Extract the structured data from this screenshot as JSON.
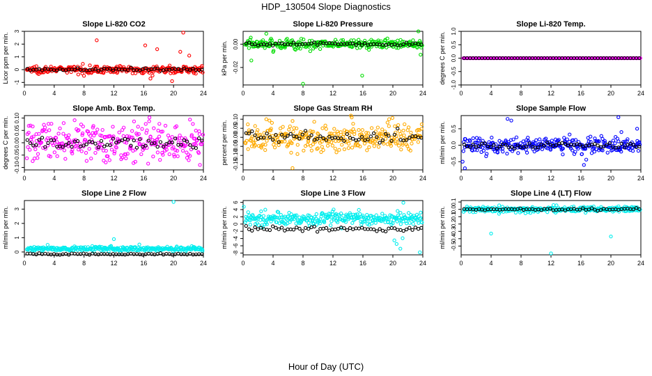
{
  "page": {
    "title": "HDP_130504  Slope Diagnostics",
    "xlabel": "Hour of Day (UTC)"
  },
  "colors": {
    "reference": "#000000",
    "axis": "#000000"
  },
  "chart_data": [
    {
      "type": "scatter",
      "title": "Slope Li-820 CO2",
      "ylabel": "Licor ppm per min.",
      "color": "#ff0000",
      "xlim": [
        0,
        24
      ],
      "xticks": [
        0,
        4,
        8,
        12,
        16,
        20,
        24
      ],
      "ylim": [
        -1.2,
        3.0
      ],
      "yticks": [
        -1,
        0,
        1,
        2,
        3
      ],
      "yticklabels": [
        "-1",
        "0",
        "1",
        "2",
        "3"
      ],
      "band": {
        "center": 0.0,
        "spread": 0.25
      },
      "ref_offset": 0.0,
      "outliers": [
        [
          9.7,
          2.3
        ],
        [
          16.2,
          1.9
        ],
        [
          17.8,
          1.6
        ],
        [
          21.3,
          2.9
        ],
        [
          19.8,
          -0.9
        ],
        [
          20.9,
          1.4
        ],
        [
          16.9,
          -0.7
        ],
        [
          22.1,
          1.1
        ]
      ]
    },
    {
      "type": "scatter",
      "title": "Slope Li-820 Pressure",
      "ylabel": "kPa per min.",
      "color": "#00dd00",
      "xlim": [
        0,
        24
      ],
      "xticks": [
        0,
        4,
        8,
        12,
        16,
        20,
        24
      ],
      "ylim": [
        -0.035,
        0.011
      ],
      "yticks": [
        -0.02,
        0.0
      ],
      "yticklabels": [
        "-0.02",
        "0.00"
      ],
      "band": {
        "center": 0.0,
        "spread": 0.004
      },
      "ref_offset": 0.0,
      "outliers": [
        [
          8.0,
          -0.034
        ],
        [
          15.9,
          -0.027
        ],
        [
          23.7,
          -0.009
        ],
        [
          1.1,
          -0.014
        ],
        [
          3.1,
          0.009
        ],
        [
          23.4,
          0.011
        ]
      ]
    },
    {
      "type": "scatter",
      "title": "Slope Li-820 Temp.",
      "ylabel": "degrees C per min.",
      "color": "#ff00ff",
      "xlim": [
        0,
        24
      ],
      "xticks": [
        0,
        4,
        8,
        12,
        16,
        20,
        24
      ],
      "ylim": [
        -1.0,
        1.0
      ],
      "yticks": [
        -1.0,
        -0.5,
        0.0,
        0.5,
        1.0
      ],
      "yticklabels": [
        "-1.0",
        "-0.5",
        "0.0",
        "0.5",
        "1.0"
      ],
      "band": {
        "center": 0.0,
        "spread": 0.0
      },
      "ref_offset": 0.0,
      "outliers": []
    },
    {
      "type": "scatter",
      "title": "Slope Amb. Box Temp.",
      "ylabel": "degrees C per min.",
      "color": "#ff00ff",
      "xlim": [
        0,
        24
      ],
      "xticks": [
        0,
        4,
        8,
        12,
        16,
        20,
        24
      ],
      "ylim": [
        -0.11,
        0.11
      ],
      "yticks": [
        -0.1,
        -0.05,
        0.0,
        0.05,
        0.1
      ],
      "yticklabels": [
        "-0.10",
        "-0.05",
        "0.00",
        "0.05",
        "0.10"
      ],
      "band": {
        "center": 0.0,
        "spread": 0.07
      },
      "ref_offset": 0.0,
      "outliers": []
    },
    {
      "type": "scatter",
      "title": "Slope Gas Stream RH",
      "ylabel": "percent per min.",
      "color": "#ffaa00",
      "xlim": [
        0,
        24
      ],
      "xticks": [
        0,
        4,
        8,
        12,
        16,
        20,
        24
      ],
      "ylim": [
        -0.18,
        0.12
      ],
      "yticks": [
        -0.15,
        -0.1,
        -0.05,
        0.0,
        0.05,
        0.1
      ],
      "yticklabels": [
        "-0.15",
        "-0.10",
        "-0.05",
        "0.00",
        "0.05",
        "0.10"
      ],
      "band": {
        "center": 0.0,
        "spread": 0.07
      },
      "ref_offset": 0.0,
      "outliers": [
        [
          6.6,
          -0.17
        ],
        [
          3.1,
          0.1
        ],
        [
          14.5,
          0.11
        ],
        [
          19.5,
          0.1
        ]
      ]
    },
    {
      "type": "scatter",
      "title": "Slope Sample Flow",
      "ylabel": "ml/min per min.",
      "color": "#0000ff",
      "xlim": [
        0,
        24
      ],
      "xticks": [
        0,
        4,
        8,
        12,
        16,
        20,
        24
      ],
      "ylim": [
        -0.75,
        0.9
      ],
      "yticks": [
        -0.5,
        0.0,
        0.5
      ],
      "yticklabels": [
        "-0.5",
        "0.0",
        "0.5"
      ],
      "band": {
        "center": 0.0,
        "spread": 0.22
      },
      "ref_offset": 0.0,
      "outliers": [
        [
          6.2,
          0.8
        ],
        [
          6.7,
          0.75
        ],
        [
          21.0,
          0.85
        ],
        [
          0.5,
          -0.7
        ],
        [
          0.2,
          -0.5
        ],
        [
          16.4,
          -0.6
        ],
        [
          21.4,
          0.4
        ],
        [
          23.5,
          0.5
        ]
      ]
    },
    {
      "type": "scatter",
      "title": "Slope Line 2 Flow",
      "ylabel": "ml/min per min.",
      "color": "#00eeee",
      "xlim": [
        0,
        24
      ],
      "xticks": [
        0,
        4,
        8,
        12,
        16,
        20,
        24
      ],
      "ylim": [
        -0.2,
        3.6
      ],
      "yticks": [
        0,
        1,
        2,
        3
      ],
      "yticklabels": [
        "0",
        "1",
        "2",
        "3"
      ],
      "band": {
        "center": 0.22,
        "spread": 0.14
      },
      "ref_offset": -0.15,
      "outliers": [
        [
          12.0,
          0.9
        ],
        [
          20.0,
          3.5
        ]
      ]
    },
    {
      "type": "scatter",
      "title": "Slope Line 3 Flow",
      "ylabel": "ml/min per min.",
      "color": "#00eeee",
      "xlim": [
        0,
        24
      ],
      "xticks": [
        0,
        4,
        8,
        12,
        16,
        20,
        24
      ],
      "ylim": [
        -8.5,
        6.5
      ],
      "yticks": [
        -8,
        -6,
        -4,
        -2,
        0,
        2,
        4,
        6
      ],
      "yticklabels": [
        "-8",
        "-6",
        "-4",
        "-2",
        "0",
        "2",
        "4",
        "6"
      ],
      "band": {
        "center": 1.5,
        "spread": 1.6
      },
      "ref_offset": -1.4,
      "outliers": [
        [
          20.5,
          -5.5
        ],
        [
          21.0,
          -6.8
        ],
        [
          21.3,
          -3.9
        ],
        [
          20.2,
          -4.5
        ],
        [
          23.6,
          -7.8
        ],
        [
          0.1,
          4.8
        ],
        [
          21.4,
          5.9
        ]
      ]
    },
    {
      "type": "scatter",
      "title": "Slope Line 4 (LT) Flow",
      "ylabel": "ml/min per min.",
      "color": "#00eeee",
      "xlim": [
        0,
        24
      ],
      "xticks": [
        0,
        4,
        8,
        12,
        16,
        20,
        24
      ],
      "ylim": [
        -0.62,
        0.12
      ],
      "yticks": [
        -0.5,
        -0.4,
        -0.3,
        -0.2,
        -0.1,
        0.0,
        0.1
      ],
      "yticklabels": [
        "-0.5",
        "-0.4",
        "-0.3",
        "-0.2",
        "-0.1",
        "0.0",
        "0.1"
      ],
      "band": {
        "center": 0.0,
        "spread": 0.035
      },
      "ref_offset": 0.0,
      "outliers": [
        [
          4.0,
          -0.33
        ],
        [
          12.0,
          -0.6
        ],
        [
          20.0,
          -0.37
        ]
      ]
    }
  ]
}
